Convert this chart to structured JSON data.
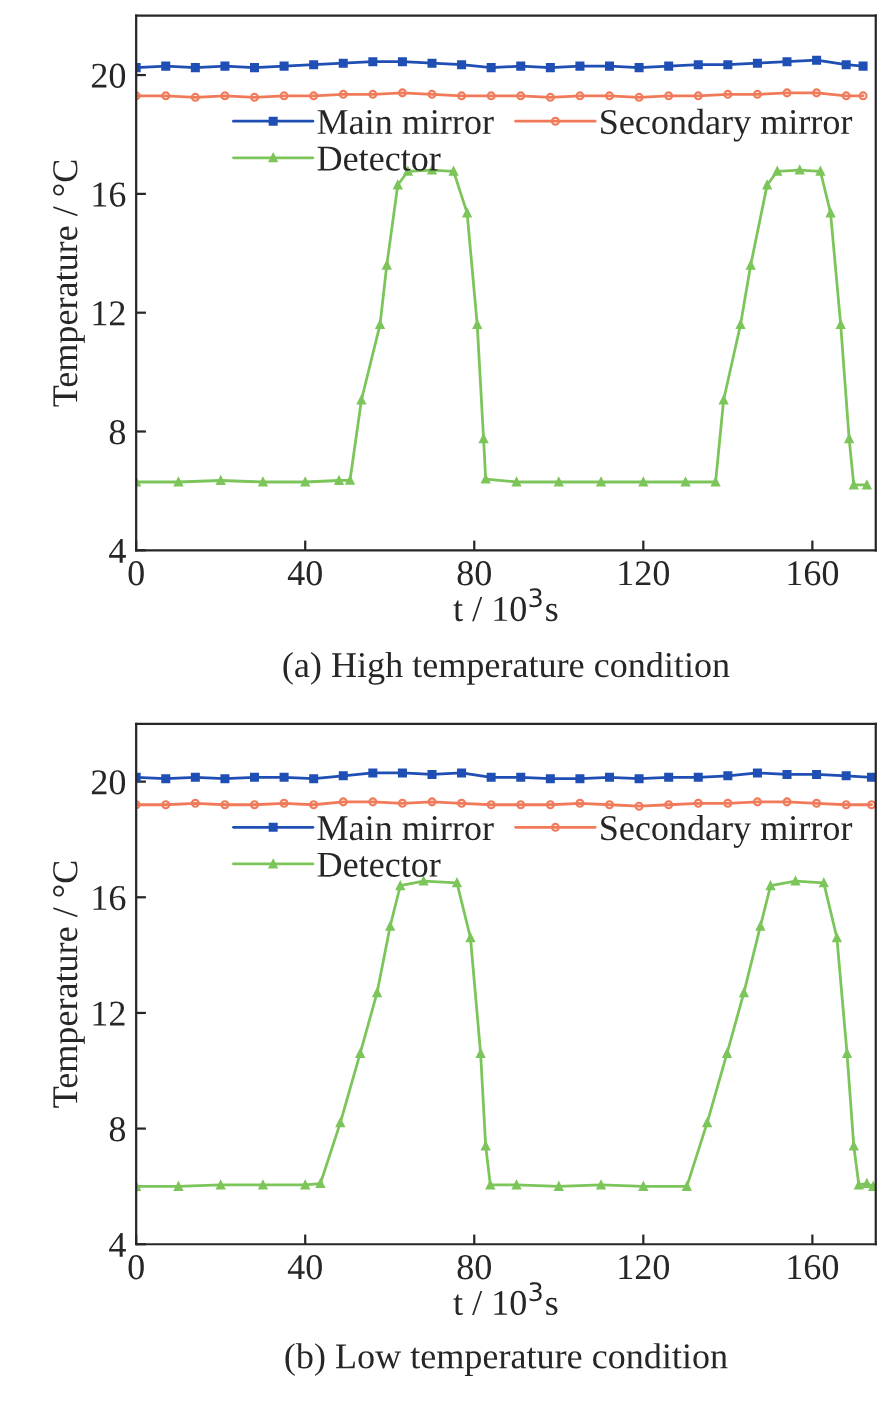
{
  "chart_data": [
    {
      "type": "line",
      "title": "(a) High temperature condition",
      "xlabel": "t / 10$^{3}$s",
      "ylabel": "Temperature / °C",
      "xlim": [
        0,
        175
      ],
      "ylim": [
        4,
        22
      ],
      "xticks": [
        0,
        40,
        80,
        120,
        160
      ],
      "yticks": [
        4,
        8,
        12,
        16,
        20
      ],
      "legend": "top",
      "grid": false,
      "line_style": "solid",
      "series": [
        {
          "name": "Main mirror",
          "color": "#1f4fb4",
          "marker": "square",
          "x": [
            0,
            7,
            14,
            21,
            28,
            35,
            42,
            49,
            56,
            63,
            70,
            77,
            84,
            91,
            98,
            105,
            112,
            119,
            126,
            133,
            140,
            147,
            154,
            161,
            168,
            172
          ],
          "values": [
            20.25,
            20.3,
            20.25,
            20.3,
            20.25,
            20.3,
            20.35,
            20.4,
            20.45,
            20.45,
            20.4,
            20.35,
            20.25,
            20.3,
            20.25,
            20.3,
            20.3,
            20.25,
            20.3,
            20.35,
            20.35,
            20.4,
            20.45,
            20.5,
            20.35,
            20.3
          ]
        },
        {
          "name": "Secondary mirror",
          "color": "#f07a5a",
          "marker": "circle",
          "x": [
            0,
            7,
            14,
            21,
            28,
            35,
            42,
            49,
            56,
            63,
            70,
            77,
            84,
            91,
            98,
            105,
            112,
            119,
            126,
            133,
            140,
            147,
            154,
            161,
            168,
            172
          ],
          "values": [
            19.3,
            19.3,
            19.25,
            19.3,
            19.25,
            19.3,
            19.3,
            19.35,
            19.35,
            19.4,
            19.35,
            19.3,
            19.3,
            19.3,
            19.25,
            19.3,
            19.3,
            19.25,
            19.3,
            19.3,
            19.35,
            19.35,
            19.4,
            19.4,
            19.3,
            19.3
          ]
        },
        {
          "name": "Detector",
          "color": "#7cc55a",
          "marker": "triangle",
          "x": [
            0,
            10,
            20,
            30,
            40,
            48,
            50.6,
            53.3,
            57.7,
            59.3,
            61.9,
            64.3,
            70,
            75.1,
            78.3,
            80.7,
            82.2,
            82.7,
            90,
            100,
            110,
            120,
            130,
            137.1,
            139,
            143,
            145.4,
            149.3,
            151.7,
            157,
            161.9,
            164.3,
            166.7,
            168.7,
            169.8,
            172.9
          ],
          "values": [
            6.3,
            6.3,
            6.35,
            6.3,
            6.3,
            6.35,
            6.36,
            9.06,
            11.6,
            13.6,
            16.3,
            16.76,
            16.8,
            16.76,
            15.36,
            11.6,
            7.76,
            6.4,
            6.3,
            6.3,
            6.3,
            6.3,
            6.3,
            6.3,
            9.06,
            11.6,
            13.6,
            16.3,
            16.76,
            16.8,
            16.76,
            15.36,
            11.6,
            7.76,
            6.2,
            6.2
          ]
        }
      ]
    },
    {
      "type": "line",
      "title": "(b) Low temperature condition",
      "xlabel": "t / 10$^{3}$s",
      "ylabel": "Temperature / °C",
      "xlim": [
        0,
        175
      ],
      "ylim": [
        4,
        22
      ],
      "xticks": [
        0,
        40,
        80,
        120,
        160
      ],
      "yticks": [
        4,
        8,
        12,
        16,
        20
      ],
      "legend": "top",
      "grid": false,
      "line_style": "solid",
      "series": [
        {
          "name": "Main mirror",
          "color": "#1f4fb4",
          "marker": "square",
          "x": [
            0,
            7,
            14,
            21,
            28,
            35,
            42,
            49,
            56,
            63,
            70,
            77,
            84,
            91,
            98,
            105,
            112,
            119,
            126,
            133,
            140,
            147,
            154,
            161,
            168,
            174
          ],
          "values": [
            20.15,
            20.1,
            20.15,
            20.1,
            20.15,
            20.15,
            20.1,
            20.2,
            20.3,
            20.3,
            20.25,
            20.3,
            20.15,
            20.15,
            20.1,
            20.1,
            20.15,
            20.1,
            20.15,
            20.15,
            20.2,
            20.3,
            20.25,
            20.25,
            20.2,
            20.15
          ]
        },
        {
          "name": "Secondary mirror",
          "color": "#f07a5a",
          "marker": "circle",
          "x": [
            0,
            7,
            14,
            21,
            28,
            35,
            42,
            49,
            56,
            63,
            70,
            77,
            84,
            91,
            98,
            105,
            112,
            119,
            126,
            133,
            140,
            147,
            154,
            161,
            168,
            174
          ],
          "values": [
            19.2,
            19.2,
            19.25,
            19.2,
            19.2,
            19.25,
            19.2,
            19.3,
            19.3,
            19.25,
            19.3,
            19.25,
            19.2,
            19.2,
            19.2,
            19.25,
            19.2,
            19.15,
            19.2,
            19.25,
            19.25,
            19.3,
            19.3,
            19.25,
            19.2,
            19.2
          ]
        },
        {
          "name": "Detector",
          "color": "#7cc55a",
          "marker": "triangle",
          "x": [
            0,
            10,
            20,
            30,
            40,
            43.6,
            48.3,
            53,
            57,
            60.1,
            62.5,
            68,
            75.9,
            79.1,
            81.5,
            82.7,
            83.8,
            90,
            100,
            110,
            120,
            130.3,
            135.1,
            139.8,
            143.8,
            147.7,
            150.1,
            156,
            162.7,
            165.8,
            168.2,
            169.8,
            171,
            172.9,
            174.4
          ],
          "values": [
            6.0,
            6.0,
            6.05,
            6.05,
            6.05,
            6.1,
            8.2,
            10.6,
            12.7,
            15.0,
            16.4,
            16.56,
            16.5,
            14.6,
            10.6,
            7.4,
            6.05,
            6.05,
            6.0,
            6.05,
            6.0,
            6.0,
            8.2,
            10.6,
            12.7,
            15.0,
            16.4,
            16.56,
            16.5,
            14.6,
            10.6,
            7.4,
            6.05,
            6.1,
            6.0
          ]
        }
      ]
    }
  ]
}
